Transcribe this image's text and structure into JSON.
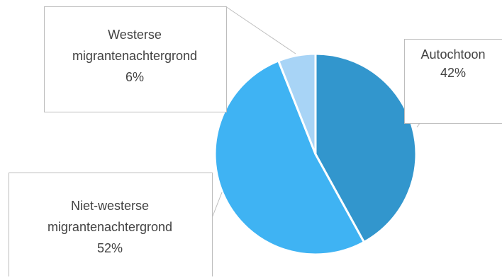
{
  "chart_data": {
    "type": "pie",
    "title": "",
    "start_angle_deg": 0,
    "direction": "clockwise",
    "slices": [
      {
        "label": "Autochtoon",
        "value": 42,
        "value_label": "42%",
        "color": "#3296cd"
      },
      {
        "label": "Niet-westerse migrantenachtergrond",
        "value": 52,
        "value_label": "52%",
        "color": "#3fb3f3"
      },
      {
        "label": "Westerse migrantenachtergrond",
        "value": 6,
        "value_label": "6%",
        "color": "#a8d4f6"
      }
    ],
    "callout_lines": [
      [
        "Autochtoon",
        "42%"
      ],
      [
        "Niet-westerse",
        "migrantenachtergrond",
        "52%"
      ],
      [
        "Westerse",
        "migrantenachtergrond",
        "6%"
      ]
    ],
    "slice_border_color": "#ffffff",
    "callout_border_color": "#bdbdbd",
    "text_color": "#424242"
  }
}
